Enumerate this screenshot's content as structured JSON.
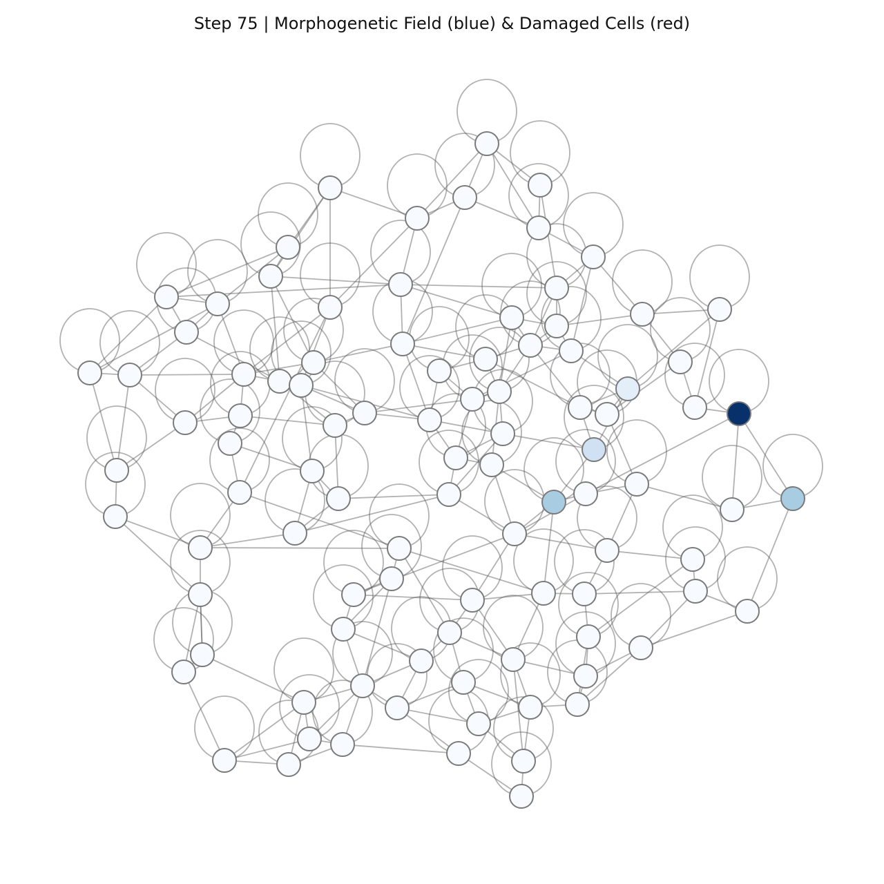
{
  "title": "Step 75 | Morphogenetic Field (blue) & Damaged Cells (red)",
  "colors": {
    "default_node": "#f7fbff",
    "node_border": "#7a7a7a",
    "edge": "#555555",
    "field_levels": {
      "low": "#e3eef9",
      "mid": "#cfe1f2",
      "high": "#a8cde3",
      "max": "#08306b"
    }
  }
}
